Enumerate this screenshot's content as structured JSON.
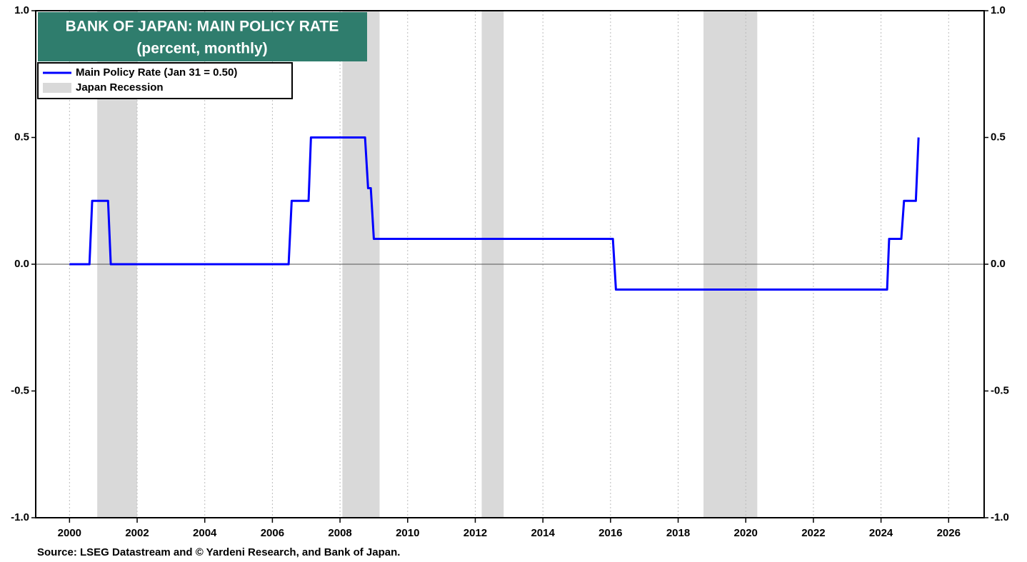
{
  "chart_data": {
    "type": "line",
    "title": "BANK OF JAPAN: MAIN POLICY RATE",
    "subtitle": "(percent, monthly)",
    "source": "Source: LSEG Datastream and © Yardeni Research, and  Bank of Japan.",
    "series": [
      {
        "name": "Main Policy Rate (Jan 31 = 0.50)",
        "color": "#0000ff",
        "x": [
          2000.0,
          2000.59,
          2000.67,
          2001.14,
          2001.22,
          2006.48,
          2006.57,
          2007.07,
          2007.14,
          2008.74,
          2008.83,
          2008.91,
          2009.0,
          2016.07,
          2016.16,
          2024.18,
          2024.24,
          2024.6,
          2024.68,
          2025.03,
          2025.11
        ],
        "values": [
          0,
          0,
          0.25,
          0.25,
          0,
          0,
          0.25,
          0.25,
          0.5,
          0.5,
          0.3,
          0.3,
          0.1,
          0.1,
          -0.1,
          -0.1,
          0.1,
          0.1,
          0.25,
          0.25,
          0.5
        ]
      }
    ],
    "recession_name": "Japan Recession",
    "recession_color": "#d9d9d9",
    "recessions": [
      {
        "start": 2000.82,
        "end": 2002.0
      },
      {
        "start": 2008.07,
        "end": 2009.17
      },
      {
        "start": 2012.19,
        "end": 2012.84
      },
      {
        "start": 2018.75,
        "end": 2020.34
      }
    ],
    "xlim": [
      1999.0,
      2027.05
    ],
    "xticks": [
      2000,
      2002,
      2004,
      2006,
      2008,
      2010,
      2012,
      2014,
      2016,
      2018,
      2020,
      2022,
      2024,
      2026
    ],
    "ylim": [
      -1.0,
      1.0
    ],
    "yticks": [
      {
        "value": -1.0,
        "label": "-1.0"
      },
      -0.5,
      {
        "value": 0.0,
        "label": "0.0"
      },
      0.5,
      {
        "value": 1.0,
        "label": "1.0"
      }
    ],
    "grid": true,
    "title_color": "#2f7d6d"
  }
}
